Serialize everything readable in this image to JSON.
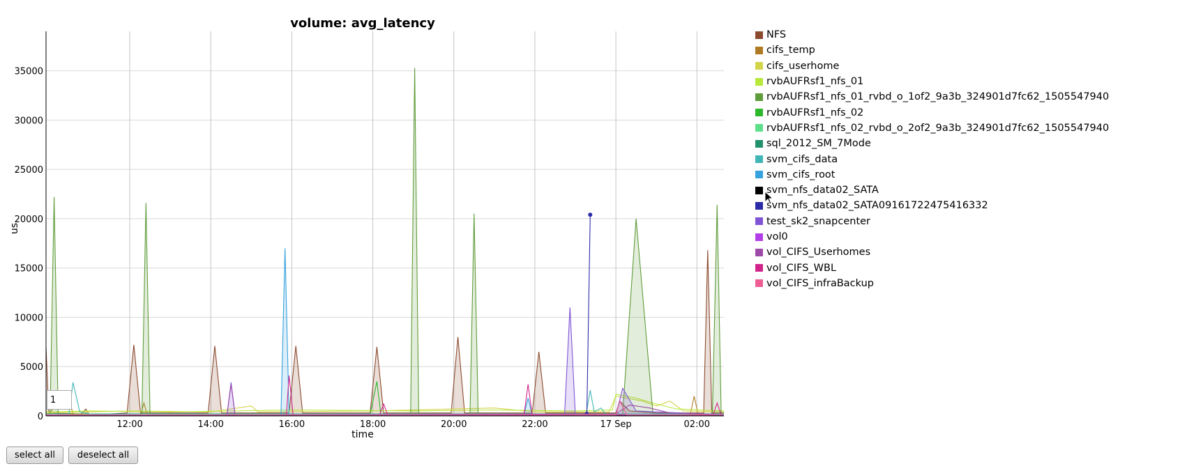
{
  "chart_data": {
    "type": "area",
    "title": "volume: avg_latency",
    "xlabel": "time",
    "ylabel": "us",
    "ylim": [
      0,
      39000
    ],
    "yticks": [
      0,
      5000,
      10000,
      15000,
      20000,
      25000,
      30000,
      35000
    ],
    "xlim": [
      "09:56",
      "02:40"
    ],
    "xticks": [
      {
        "t": "12:00",
        "label": "12:00"
      },
      {
        "t": "14:00",
        "label": "14:00"
      },
      {
        "t": "16:00",
        "label": "16:00"
      },
      {
        "t": "18:00",
        "label": "18:00"
      },
      {
        "t": "20:00",
        "label": "20:00"
      },
      {
        "t": "22:00",
        "label": "22:00"
      },
      {
        "t": "00:00",
        "label": "17 Sep"
      },
      {
        "t": "02:00",
        "label": "02:00"
      }
    ],
    "grid": true,
    "legend_position": "right",
    "series": [
      {
        "name": "NFS",
        "color": "#8b4a2e",
        "fill": true,
        "points": [
          [
            "09:56",
            7000
          ],
          [
            "10:00",
            300
          ],
          [
            "10:48",
            200
          ],
          [
            "10:55",
            700
          ],
          [
            "11:00",
            100
          ],
          [
            "11:56",
            300
          ],
          [
            "12:06",
            7200
          ],
          [
            "12:16",
            300
          ],
          [
            "13:56",
            300
          ],
          [
            "14:06",
            7100
          ],
          [
            "14:16",
            300
          ],
          [
            "15:56",
            300
          ],
          [
            "16:06",
            7100
          ],
          [
            "16:16",
            300
          ],
          [
            "17:56",
            300
          ],
          [
            "18:06",
            7000
          ],
          [
            "18:16",
            300
          ],
          [
            "19:56",
            300
          ],
          [
            "20:06",
            8000
          ],
          [
            "20:16",
            300
          ],
          [
            "21:56",
            300
          ],
          [
            "22:06",
            6500
          ],
          [
            "22:16",
            300
          ],
          [
            "00:00",
            300
          ],
          [
            "00:06",
            1500
          ],
          [
            "00:20",
            500
          ],
          [
            "01:00",
            300
          ],
          [
            "02:10",
            300
          ],
          [
            "02:16",
            16800
          ],
          [
            "02:22",
            300
          ],
          [
            "02:40",
            300
          ]
        ]
      },
      {
        "name": "cifs_temp",
        "color": "#b07a22",
        "fill": false,
        "points": [
          [
            "09:56",
            100
          ],
          [
            "10:30",
            2000
          ],
          [
            "10:36",
            100
          ],
          [
            "12:16",
            100
          ],
          [
            "12:21",
            1300
          ],
          [
            "12:26",
            100
          ],
          [
            "01:50",
            100
          ],
          [
            "01:56",
            2000
          ],
          [
            "02:02",
            100
          ],
          [
            "02:40",
            100
          ]
        ]
      },
      {
        "name": "cifs_userhome",
        "color": "#d4d44a",
        "fill": false,
        "points": [
          [
            "09:56",
            300
          ],
          [
            "12:00",
            500
          ],
          [
            "14:00",
            400
          ],
          [
            "15:00",
            1000
          ],
          [
            "15:10",
            400
          ],
          [
            "18:00",
            500
          ],
          [
            "21:00",
            800
          ],
          [
            "22:00",
            400
          ],
          [
            "23:50",
            400
          ],
          [
            "00:00",
            2000
          ],
          [
            "00:40",
            1500
          ],
          [
            "01:00",
            1000
          ],
          [
            "01:20",
            1500
          ],
          [
            "01:40",
            500
          ],
          [
            "02:40",
            400
          ]
        ]
      },
      {
        "name": "rvbAUFRsf1_nfs_01",
        "color": "#b8e83a",
        "fill": false,
        "points": [
          [
            "09:56",
            400
          ],
          [
            "11:00",
            500
          ],
          [
            "13:00",
            400
          ],
          [
            "16:00",
            600
          ],
          [
            "19:00",
            500
          ],
          [
            "21:00",
            600
          ],
          [
            "23:00",
            500
          ],
          [
            "23:55",
            600
          ],
          [
            "00:00",
            2200
          ],
          [
            "00:30",
            1800
          ],
          [
            "01:00",
            1200
          ],
          [
            "01:30",
            700
          ],
          [
            "02:40",
            500
          ]
        ]
      },
      {
        "name": "rvbAUFRsf1_nfs_01_rvbd_o_1of2_9a3b_324901d7fc62_1505547940",
        "color": "#5f9c3a",
        "fill": true,
        "points": [
          [
            "09:56",
            200
          ],
          [
            "10:02",
            200
          ],
          [
            "10:08",
            22200
          ],
          [
            "10:14",
            200
          ],
          [
            "12:18",
            200
          ],
          [
            "12:24",
            21600
          ],
          [
            "12:30",
            200
          ],
          [
            "18:56",
            200
          ],
          [
            "19:02",
            35300
          ],
          [
            "19:08",
            200
          ],
          [
            "20:24",
            200
          ],
          [
            "20:30",
            20500
          ],
          [
            "20:36",
            200
          ],
          [
            "00:10",
            200
          ],
          [
            "00:30",
            20000
          ],
          [
            "00:55",
            200
          ],
          [
            "02:23",
            200
          ],
          [
            "02:30",
            21400
          ],
          [
            "02:36",
            200
          ],
          [
            "02:40",
            200
          ]
        ]
      },
      {
        "name": "rvbAUFRsf1_nfs_02",
        "color": "#2db82d",
        "fill": false,
        "points": [
          [
            "09:56",
            100
          ],
          [
            "17:56",
            100
          ],
          [
            "18:06",
            3500
          ],
          [
            "18:12",
            100
          ],
          [
            "02:40",
            100
          ]
        ]
      },
      {
        "name": "rvbAUFRsf1_nfs_02_rvbd_o_2of2_9a3b_324901d7fc62_1505547940",
        "color": "#5ee08a",
        "fill": false,
        "points": [
          [
            "09:56",
            100
          ],
          [
            "02:40",
            100
          ]
        ]
      },
      {
        "name": "sql_2012_SM_7Mode",
        "color": "#23926b",
        "fill": false,
        "points": [
          [
            "09:56",
            100
          ],
          [
            "02:40",
            100
          ]
        ]
      },
      {
        "name": "svm_cifs_data",
        "color": "#42b6b6",
        "fill": false,
        "points": [
          [
            "09:56",
            200
          ],
          [
            "10:30",
            200
          ],
          [
            "10:36",
            3400
          ],
          [
            "10:46",
            400
          ],
          [
            "11:00",
            200
          ],
          [
            "23:16",
            200
          ],
          [
            "23:22",
            2600
          ],
          [
            "23:28",
            400
          ],
          [
            "23:38",
            800
          ],
          [
            "23:45",
            200
          ],
          [
            "02:40",
            200
          ]
        ]
      },
      {
        "name": "svm_cifs_root",
        "color": "#35a1dd",
        "fill": true,
        "points": [
          [
            "09:56",
            100
          ],
          [
            "15:44",
            100
          ],
          [
            "15:50",
            17000
          ],
          [
            "15:56",
            100
          ],
          [
            "21:44",
            100
          ],
          [
            "21:50",
            1800
          ],
          [
            "21:56",
            100
          ],
          [
            "02:40",
            100
          ]
        ]
      },
      {
        "name": "svm_nfs_data02_SATA",
        "color": "#000000",
        "fill": false,
        "points": [
          [
            "09:56",
            50
          ],
          [
            "02:40",
            50
          ]
        ]
      },
      {
        "name": "svm_nfs_data02_SATA09161722475416332",
        "color": "#2b2ba8",
        "fill": false,
        "points": [
          [
            "23:17",
            200
          ],
          [
            "23:22",
            20400
          ]
        ]
      },
      {
        "name": "test_sk2_snapcenter",
        "color": "#7f55d6",
        "fill": true,
        "points": [
          [
            "09:56",
            100
          ],
          [
            "14:24",
            100
          ],
          [
            "14:30",
            3400
          ],
          [
            "14:36",
            100
          ],
          [
            "22:44",
            100
          ],
          [
            "22:52",
            11000
          ],
          [
            "23:00",
            100
          ],
          [
            "00:00",
            100
          ],
          [
            "00:10",
            2800
          ],
          [
            "00:30",
            500
          ],
          [
            "02:40",
            100
          ]
        ]
      },
      {
        "name": "vol0",
        "color": "#b23fe6",
        "fill": false,
        "points": [
          [
            "09:56",
            100
          ],
          [
            "02:40",
            100
          ]
        ]
      },
      {
        "name": "vol_CIFS_Userhomes",
        "color": "#9e4aa8",
        "fill": false,
        "points": [
          [
            "09:56",
            100
          ],
          [
            "14:24",
            100
          ],
          [
            "14:30",
            3200
          ],
          [
            "14:36",
            100
          ],
          [
            "00:00",
            200
          ],
          [
            "00:20",
            1100
          ],
          [
            "00:50",
            800
          ],
          [
            "01:20",
            300
          ],
          [
            "02:40",
            100
          ]
        ]
      },
      {
        "name": "vol_CIFS_WBL",
        "color": "#d1248b",
        "fill": false,
        "points": [
          [
            "09:56",
            100
          ],
          [
            "15:52",
            100
          ],
          [
            "15:56",
            4100
          ],
          [
            "16:02",
            100
          ],
          [
            "18:10",
            100
          ],
          [
            "18:16",
            1200
          ],
          [
            "18:22",
            100
          ],
          [
            "21:44",
            100
          ],
          [
            "21:50",
            3200
          ],
          [
            "21:56",
            100
          ],
          [
            "02:24",
            100
          ],
          [
            "02:30",
            1300
          ],
          [
            "02:36",
            100
          ],
          [
            "02:40",
            100
          ]
        ]
      },
      {
        "name": "vol_CIFS_infraBackup",
        "color": "#ee5e95",
        "fill": false,
        "points": [
          [
            "09:56",
            100
          ],
          [
            "00:00",
            100
          ],
          [
            "00:06",
            1500
          ],
          [
            "00:16",
            100
          ],
          [
            "02:40",
            100
          ]
        ]
      }
    ]
  },
  "controls": {
    "roller_value": "1",
    "select_all_label": "select all",
    "deselect_all_label": "deselect all"
  }
}
